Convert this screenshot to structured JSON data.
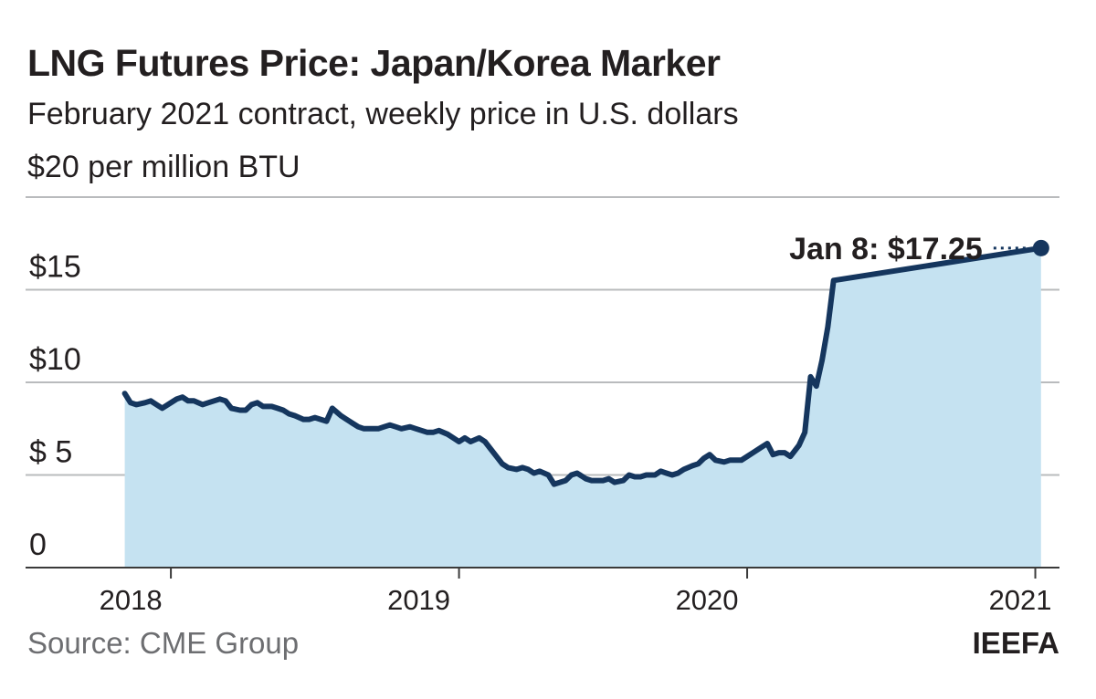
{
  "header": {
    "title": "LNG Futures Price: Japan/Korea Marker",
    "subtitle": "February 2021 contract, weekly price in U.S. dollars"
  },
  "footer": {
    "source": "Source: CME Group",
    "brand": "IEEFA"
  },
  "colors": {
    "line": "#15365e",
    "fill": "#c5e2f1",
    "grid": "#b9bbbd",
    "text": "#231f20",
    "muted": "#6d6e71"
  },
  "chart_data": {
    "type": "area",
    "title": "LNG Futures Price: Japan/Korea Marker",
    "subtitle": "February 2021 contract, weekly price in U.S. dollars",
    "unit_label": "$20 per million BTU",
    "ylim": [
      0,
      20
    ],
    "y_ticks": [
      {
        "value": 0,
        "label": "0"
      },
      {
        "value": 5,
        "label": "$ 5"
      },
      {
        "value": 10,
        "label": "$10"
      },
      {
        "value": 15,
        "label": "$15"
      }
    ],
    "x_labels": [
      {
        "value": 2018.0,
        "label": "2018"
      },
      {
        "value": 2019.0,
        "label": "2019"
      },
      {
        "value": 2020.0,
        "label": "2020"
      },
      {
        "value": 2021.0,
        "label": "2021"
      }
    ],
    "x_tick_marks": [
      2018.0,
      2019.0,
      2020.0,
      2021.0
    ],
    "xlim": [
      2017.8,
      2021.03
    ],
    "grid": true,
    "annotation": {
      "text": "Jan 8: $17.25",
      "x": 2021.02,
      "y": 17.25
    },
    "series": [
      {
        "values": [
          [
            2017.84,
            9.4
          ],
          [
            2017.86,
            8.9
          ],
          [
            2017.88,
            8.8
          ],
          [
            2017.91,
            8.9
          ],
          [
            2017.93,
            9.0
          ],
          [
            2017.95,
            8.8
          ],
          [
            2017.97,
            8.6
          ],
          [
            2018.0,
            8.9
          ],
          [
            2018.02,
            9.1
          ],
          [
            2018.04,
            9.2
          ],
          [
            2018.06,
            9.0
          ],
          [
            2018.08,
            9.0
          ],
          [
            2018.11,
            8.8
          ],
          [
            2018.13,
            8.9
          ],
          [
            2018.15,
            9.0
          ],
          [
            2018.17,
            9.1
          ],
          [
            2018.19,
            9.0
          ],
          [
            2018.21,
            8.6
          ],
          [
            2018.24,
            8.5
          ],
          [
            2018.26,
            8.5
          ],
          [
            2018.28,
            8.8
          ],
          [
            2018.3,
            8.9
          ],
          [
            2018.32,
            8.7
          ],
          [
            2018.35,
            8.7
          ],
          [
            2018.37,
            8.6
          ],
          [
            2018.39,
            8.5
          ],
          [
            2018.41,
            8.3
          ],
          [
            2018.43,
            8.2
          ],
          [
            2018.46,
            8.0
          ],
          [
            2018.48,
            8.0
          ],
          [
            2018.5,
            8.1
          ],
          [
            2018.52,
            8.0
          ],
          [
            2018.54,
            7.9
          ],
          [
            2018.56,
            8.6
          ],
          [
            2018.59,
            8.2
          ],
          [
            2018.61,
            8.0
          ],
          [
            2018.63,
            7.8
          ],
          [
            2018.65,
            7.6
          ],
          [
            2018.67,
            7.5
          ],
          [
            2018.69,
            7.5
          ],
          [
            2018.72,
            7.5
          ],
          [
            2018.74,
            7.6
          ],
          [
            2018.76,
            7.7
          ],
          [
            2018.78,
            7.6
          ],
          [
            2018.8,
            7.5
          ],
          [
            2018.83,
            7.6
          ],
          [
            2018.85,
            7.5
          ],
          [
            2018.87,
            7.4
          ],
          [
            2018.89,
            7.3
          ],
          [
            2018.91,
            7.3
          ],
          [
            2018.93,
            7.4
          ],
          [
            2018.96,
            7.2
          ],
          [
            2018.98,
            7.0
          ],
          [
            2019.0,
            6.8
          ],
          [
            2019.02,
            7.0
          ],
          [
            2019.04,
            6.8
          ],
          [
            2019.07,
            7.0
          ],
          [
            2019.09,
            6.8
          ],
          [
            2019.11,
            6.4
          ],
          [
            2019.13,
            6.0
          ],
          [
            2019.15,
            5.6
          ],
          [
            2019.17,
            5.4
          ],
          [
            2019.2,
            5.3
          ],
          [
            2019.22,
            5.4
          ],
          [
            2019.24,
            5.3
          ],
          [
            2019.26,
            5.1
          ],
          [
            2019.28,
            5.2
          ],
          [
            2019.31,
            5.0
          ],
          [
            2019.33,
            4.5
          ],
          [
            2019.35,
            4.6
          ],
          [
            2019.37,
            4.7
          ],
          [
            2019.39,
            5.0
          ],
          [
            2019.41,
            5.1
          ],
          [
            2019.44,
            4.8
          ],
          [
            2019.46,
            4.7
          ],
          [
            2019.48,
            4.7
          ],
          [
            2019.5,
            4.7
          ],
          [
            2019.52,
            4.8
          ],
          [
            2019.54,
            4.6
          ],
          [
            2019.57,
            4.7
          ],
          [
            2019.59,
            5.0
          ],
          [
            2019.61,
            4.9
          ],
          [
            2019.63,
            4.9
          ],
          [
            2019.65,
            5.0
          ],
          [
            2019.68,
            5.0
          ],
          [
            2019.7,
            5.2
          ],
          [
            2019.72,
            5.1
          ],
          [
            2019.74,
            5.0
          ],
          [
            2019.76,
            5.1
          ],
          [
            2019.78,
            5.3
          ],
          [
            2019.81,
            5.5
          ],
          [
            2019.83,
            5.6
          ],
          [
            2019.85,
            5.9
          ],
          [
            2019.87,
            6.1
          ],
          [
            2019.89,
            5.8
          ],
          [
            2019.92,
            5.7
          ],
          [
            2019.94,
            5.8
          ],
          [
            2019.96,
            5.8
          ],
          [
            2019.98,
            5.8
          ],
          [
            2020.0,
            6.0
          ],
          [
            2020.02,
            6.2
          ],
          [
            2020.05,
            6.5
          ],
          [
            2020.07,
            6.7
          ],
          [
            2020.09,
            6.1
          ],
          [
            2020.11,
            6.2
          ],
          [
            2020.13,
            6.2
          ],
          [
            2020.15,
            6.0
          ],
          [
            2020.18,
            6.6
          ],
          [
            2020.2,
            7.3
          ],
          [
            2020.22,
            10.3
          ],
          [
            2020.24,
            9.8
          ],
          [
            2020.26,
            11.2
          ],
          [
            2020.28,
            13.0
          ],
          [
            2020.3,
            15.5
          ],
          [
            2021.02,
            17.25
          ]
        ]
      }
    ]
  }
}
